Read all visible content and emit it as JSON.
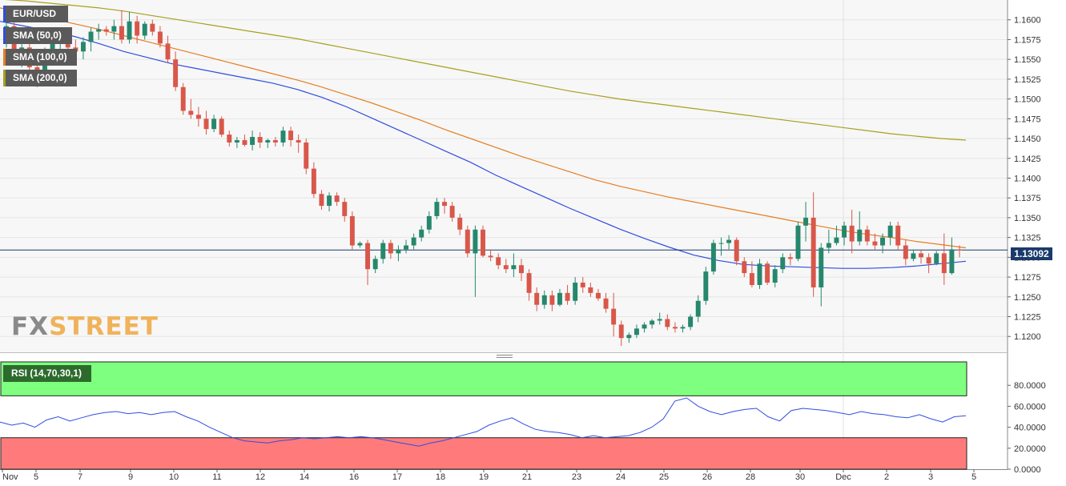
{
  "legend": {
    "symbol": "EUR/USD",
    "sma50": "SMA (50,0)",
    "sma100": "SMA (100,0)",
    "sma200": "SMA (200,0)"
  },
  "colors": {
    "up": "#26876c",
    "down": "#d9574a",
    "sma50": "#2f4de0",
    "sma100": "#e67e22",
    "sma200": "#a89f1f",
    "current_line": "#1a3a6b",
    "rsi_line": "#2f4de0",
    "rsi_overbought": "#7fff7f",
    "rsi_oversold": "#ff7b7b"
  },
  "current_price": "1.13092",
  "watermark": {
    "fx": "FX",
    "street": "STREET"
  },
  "rsi": {
    "label": "RSI (14,70,30,1)",
    "ticks": [
      "80.0000",
      "60.0000",
      "40.0000",
      "20.0000",
      "0.0000"
    ]
  },
  "chart_data": {
    "type": "candlestick",
    "title": "EUR/USD",
    "timeframe_hint": "4h candles, Nov 4 – Dec 5",
    "x_labels": [
      "Nov",
      "5",
      "7",
      "9",
      "10",
      "11",
      "12",
      "14",
      "16",
      "17",
      "18",
      "19",
      "21",
      "23",
      "24",
      "25",
      "26",
      "28",
      "30",
      "Dec",
      "2",
      "3",
      "5"
    ],
    "ylim": [
      1.118,
      1.1625
    ],
    "y_ticks": [
      "1.1600",
      "1.1575",
      "1.1550",
      "1.1525",
      "1.1500",
      "1.1475",
      "1.1450",
      "1.1425",
      "1.1400",
      "1.1375",
      "1.1350",
      "1.1325",
      "1.1300",
      "1.1275",
      "1.1250",
      "1.1225",
      "1.1200"
    ],
    "candles": [
      [
        1.1582,
        1.1605,
        1.1565,
        1.1592
      ],
      [
        1.1592,
        1.1598,
        1.155,
        1.156
      ],
      [
        1.156,
        1.1575,
        1.154,
        1.1565
      ],
      [
        1.1565,
        1.157,
        1.153,
        1.154
      ],
      [
        1.154,
        1.155,
        1.1515,
        1.1525
      ],
      [
        1.1525,
        1.1565,
        1.152,
        1.1558
      ],
      [
        1.1558,
        1.158,
        1.155,
        1.157
      ],
      [
        1.157,
        1.1585,
        1.156,
        1.1575
      ],
      [
        1.1575,
        1.158,
        1.1555,
        1.1565
      ],
      [
        1.1565,
        1.1575,
        1.1545,
        1.156
      ],
      [
        1.156,
        1.1578,
        1.155,
        1.1572
      ],
      [
        1.1572,
        1.159,
        1.156,
        1.1585
      ],
      [
        1.1585,
        1.1595,
        1.1575,
        1.1588
      ],
      [
        1.1588,
        1.1592,
        1.158,
        1.1585
      ],
      [
        1.1585,
        1.16,
        1.1575,
        1.1592
      ],
      [
        1.1592,
        1.1612,
        1.157,
        1.1575
      ],
      [
        1.1575,
        1.161,
        1.157,
        1.1598
      ],
      [
        1.1598,
        1.1605,
        1.157,
        1.158
      ],
      [
        1.158,
        1.1598,
        1.1575,
        1.1595
      ],
      [
        1.1595,
        1.16,
        1.158,
        1.1585
      ],
      [
        1.1585,
        1.1592,
        1.1565,
        1.157
      ],
      [
        1.157,
        1.158,
        1.1545,
        1.155
      ],
      [
        1.155,
        1.156,
        1.151,
        1.1515
      ],
      [
        1.1515,
        1.152,
        1.148,
        1.1485
      ],
      [
        1.1485,
        1.15,
        1.1475,
        1.148
      ],
      [
        1.148,
        1.149,
        1.1465,
        1.1475
      ],
      [
        1.1475,
        1.1485,
        1.1455,
        1.1462
      ],
      [
        1.1462,
        1.148,
        1.1458,
        1.1475
      ],
      [
        1.1475,
        1.1478,
        1.1452,
        1.1455
      ],
      [
        1.1455,
        1.146,
        1.144,
        1.1445
      ],
      [
        1.1445,
        1.1452,
        1.1438,
        1.1448
      ],
      [
        1.1448,
        1.1455,
        1.144,
        1.1442
      ],
      [
        1.1442,
        1.146,
        1.1435,
        1.1452
      ],
      [
        1.1452,
        1.1458,
        1.1438,
        1.1445
      ],
      [
        1.1445,
        1.145,
        1.1438,
        1.1448
      ],
      [
        1.1448,
        1.1452,
        1.144,
        1.1445
      ],
      [
        1.1445,
        1.1465,
        1.144,
        1.146
      ],
      [
        1.146,
        1.1465,
        1.144,
        1.1448
      ],
      [
        1.1448,
        1.1455,
        1.1432,
        1.1445
      ],
      [
        1.1445,
        1.145,
        1.1405,
        1.1412
      ],
      [
        1.1412,
        1.142,
        1.1375,
        1.138
      ],
      [
        1.138,
        1.1385,
        1.136,
        1.1365
      ],
      [
        1.1365,
        1.1382,
        1.1358,
        1.1378
      ],
      [
        1.1378,
        1.1382,
        1.1365,
        1.137
      ],
      [
        1.137,
        1.1375,
        1.1345,
        1.1352
      ],
      [
        1.1352,
        1.1358,
        1.131,
        1.1315
      ],
      [
        1.1315,
        1.132,
        1.1312,
        1.1318
      ],
      [
        1.1318,
        1.1322,
        1.1265,
        1.1285
      ],
      [
        1.1285,
        1.1302,
        1.128,
        1.1298
      ],
      [
        1.1298,
        1.1322,
        1.1292,
        1.1318
      ],
      [
        1.1318,
        1.1322,
        1.1298,
        1.1305
      ],
      [
        1.1305,
        1.1315,
        1.1295,
        1.131
      ],
      [
        1.131,
        1.1322,
        1.1305,
        1.1315
      ],
      [
        1.1315,
        1.133,
        1.131,
        1.1325
      ],
      [
        1.1325,
        1.134,
        1.132,
        1.1335
      ],
      [
        1.1335,
        1.1358,
        1.133,
        1.1352
      ],
      [
        1.1352,
        1.1375,
        1.1348,
        1.137
      ],
      [
        1.137,
        1.1375,
        1.1355,
        1.1365
      ],
      [
        1.1365,
        1.137,
        1.1345,
        1.135
      ],
      [
        1.135,
        1.1355,
        1.1328,
        1.1335
      ],
      [
        1.1335,
        1.134,
        1.13,
        1.1305
      ],
      [
        1.1305,
        1.134,
        1.125,
        1.1335
      ],
      [
        1.1335,
        1.134,
        1.13,
        1.1302
      ],
      [
        1.1302,
        1.131,
        1.1295,
        1.13
      ],
      [
        1.13,
        1.1305,
        1.1285,
        1.129
      ],
      [
        1.129,
        1.1298,
        1.128,
        1.1285
      ],
      [
        1.1285,
        1.1305,
        1.1275,
        1.129
      ],
      [
        1.129,
        1.1298,
        1.127,
        1.128
      ],
      [
        1.128,
        1.1285,
        1.1245,
        1.1255
      ],
      [
        1.1255,
        1.1262,
        1.1232,
        1.124
      ],
      [
        1.124,
        1.1258,
        1.1235,
        1.1252
      ],
      [
        1.1252,
        1.1258,
        1.1232,
        1.124
      ],
      [
        1.124,
        1.126,
        1.1238,
        1.1255
      ],
      [
        1.1255,
        1.1265,
        1.124,
        1.1245
      ],
      [
        1.1245,
        1.1275,
        1.124,
        1.1268
      ],
      [
        1.1268,
        1.1275,
        1.1255,
        1.1262
      ],
      [
        1.1262,
        1.1268,
        1.125,
        1.1255
      ],
      [
        1.1255,
        1.126,
        1.1245,
        1.1248
      ],
      [
        1.1248,
        1.1255,
        1.123,
        1.1235
      ],
      [
        1.1235,
        1.1255,
        1.12,
        1.1215
      ],
      [
        1.1215,
        1.122,
        1.1188,
        1.1198
      ],
      [
        1.1198,
        1.1205,
        1.1192,
        1.1202
      ],
      [
        1.1202,
        1.1215,
        1.1198,
        1.121
      ],
      [
        1.121,
        1.1218,
        1.1205,
        1.1215
      ],
      [
        1.1215,
        1.1222,
        1.121,
        1.122
      ],
      [
        1.122,
        1.123,
        1.1215,
        1.1222
      ],
      [
        1.1222,
        1.1228,
        1.1208,
        1.1212
      ],
      [
        1.1212,
        1.1218,
        1.1205,
        1.121
      ],
      [
        1.121,
        1.1215,
        1.1205,
        1.1212
      ],
      [
        1.1212,
        1.1228,
        1.1208,
        1.1225
      ],
      [
        1.1225,
        1.1252,
        1.1218,
        1.1245
      ],
      [
        1.1245,
        1.1288,
        1.124,
        1.1282
      ],
      [
        1.1282,
        1.1322,
        1.1278,
        1.1318
      ],
      [
        1.1318,
        1.1325,
        1.1302,
        1.1318
      ],
      [
        1.1318,
        1.1328,
        1.131,
        1.1322
      ],
      [
        1.1322,
        1.1325,
        1.129,
        1.1295
      ],
      [
        1.1295,
        1.13,
        1.1275,
        1.128
      ],
      [
        1.128,
        1.1295,
        1.1262,
        1.1265
      ],
      [
        1.1265,
        1.1298,
        1.126,
        1.1292
      ],
      [
        1.1292,
        1.1295,
        1.1265,
        1.1268
      ],
      [
        1.1268,
        1.129,
        1.1262,
        1.1285
      ],
      [
        1.1285,
        1.1305,
        1.128,
        1.13
      ],
      [
        1.13,
        1.1305,
        1.129,
        1.1298
      ],
      [
        1.1298,
        1.1345,
        1.1295,
        1.134
      ],
      [
        1.134,
        1.137,
        1.132,
        1.135
      ],
      [
        1.135,
        1.1382,
        1.125,
        1.1262
      ],
      [
        1.1262,
        1.1318,
        1.1238,
        1.1312
      ],
      [
        1.1312,
        1.1335,
        1.1305,
        1.1318
      ],
      [
        1.1318,
        1.134,
        1.1315,
        1.1325
      ],
      [
        1.1325,
        1.1345,
        1.1315,
        1.134
      ],
      [
        1.134,
        1.136,
        1.1305,
        1.132
      ],
      [
        1.132,
        1.1358,
        1.1315,
        1.1335
      ],
      [
        1.1335,
        1.134,
        1.1315,
        1.132
      ],
      [
        1.132,
        1.133,
        1.131,
        1.1315
      ],
      [
        1.1315,
        1.133,
        1.1305,
        1.1325
      ],
      [
        1.1325,
        1.1345,
        1.1315,
        1.134
      ],
      [
        1.134,
        1.1345,
        1.131,
        1.1315
      ],
      [
        1.1315,
        1.1322,
        1.129,
        1.1298
      ],
      [
        1.1298,
        1.131,
        1.1295,
        1.1305
      ],
      [
        1.1305,
        1.131,
        1.1292,
        1.13
      ],
      [
        1.13,
        1.1305,
        1.128,
        1.1292
      ],
      [
        1.1292,
        1.1308,
        1.129,
        1.1305
      ],
      [
        1.1305,
        1.133,
        1.1265,
        1.128
      ],
      [
        1.128,
        1.1325,
        1.1278,
        1.131
      ],
      [
        1.131,
        1.1315,
        1.13,
        1.1309
      ]
    ],
    "sma50": [
      1.1598,
      1.1592,
      1.1586,
      1.1579,
      1.157,
      1.156,
      1.1552,
      1.1544,
      1.1538,
      1.1532,
      1.1526,
      1.152,
      1.1512,
      1.1502,
      1.149,
      1.1476,
      1.1462,
      1.1448,
      1.1434,
      1.142,
      1.1404,
      1.139,
      1.1376,
      1.1362,
      1.1349,
      1.1336,
      1.1324,
      1.1313,
      1.1303,
      1.1296,
      1.1291,
      1.1289,
      1.1288,
      1.1287,
      1.1286,
      1.1286,
      1.1287,
      1.1289,
      1.1292,
      1.1295
    ],
    "sma100": [
      1.1615,
      1.1609,
      1.1602,
      1.1595,
      1.1588,
      1.158,
      1.1572,
      1.1564,
      1.1556,
      1.1548,
      1.154,
      1.1532,
      1.1524,
      1.1515,
      1.1505,
      1.1495,
      1.1484,
      1.1473,
      1.1461,
      1.145,
      1.1439,
      1.1428,
      1.1418,
      1.1408,
      1.1398,
      1.139,
      1.1383,
      1.1376,
      1.137,
      1.1364,
      1.1358,
      1.1352,
      1.1346,
      1.134,
      1.1334,
      1.1329,
      1.1325,
      1.132,
      1.1316,
      1.1312
    ],
    "sma200": [
      1.1626,
      1.1624,
      1.1621,
      1.1618,
      1.1615,
      1.1611,
      1.1606,
      1.1601,
      1.1596,
      1.1591,
      1.1586,
      1.1581,
      1.1576,
      1.157,
      1.1564,
      1.1558,
      1.1552,
      1.1546,
      1.154,
      1.1534,
      1.1528,
      1.1522,
      1.1516,
      1.151,
      1.1505,
      1.15,
      1.1496,
      1.1492,
      1.1488,
      1.1484,
      1.148,
      1.1476,
      1.1472,
      1.1468,
      1.1464,
      1.146,
      1.1456,
      1.1453,
      1.145,
      1.1448
    ],
    "rsi": [
      45,
      42,
      44,
      40,
      47,
      50,
      46,
      49,
      52,
      54,
      55,
      53,
      54,
      52,
      54,
      55,
      50,
      46,
      40,
      35,
      30,
      27,
      26,
      25,
      27,
      28,
      30,
      29,
      30,
      31,
      30,
      31,
      30,
      28,
      26,
      24,
      22,
      25,
      27,
      30,
      33,
      36,
      42,
      46,
      49,
      43,
      38,
      36,
      35,
      33,
      30,
      32,
      30,
      31,
      32,
      35,
      40,
      48,
      65,
      68,
      60,
      55,
      52,
      55,
      57,
      58,
      50,
      46,
      56,
      58,
      57,
      56,
      54,
      52,
      55,
      53,
      52,
      50,
      49,
      52,
      48,
      45,
      50,
      51
    ]
  }
}
